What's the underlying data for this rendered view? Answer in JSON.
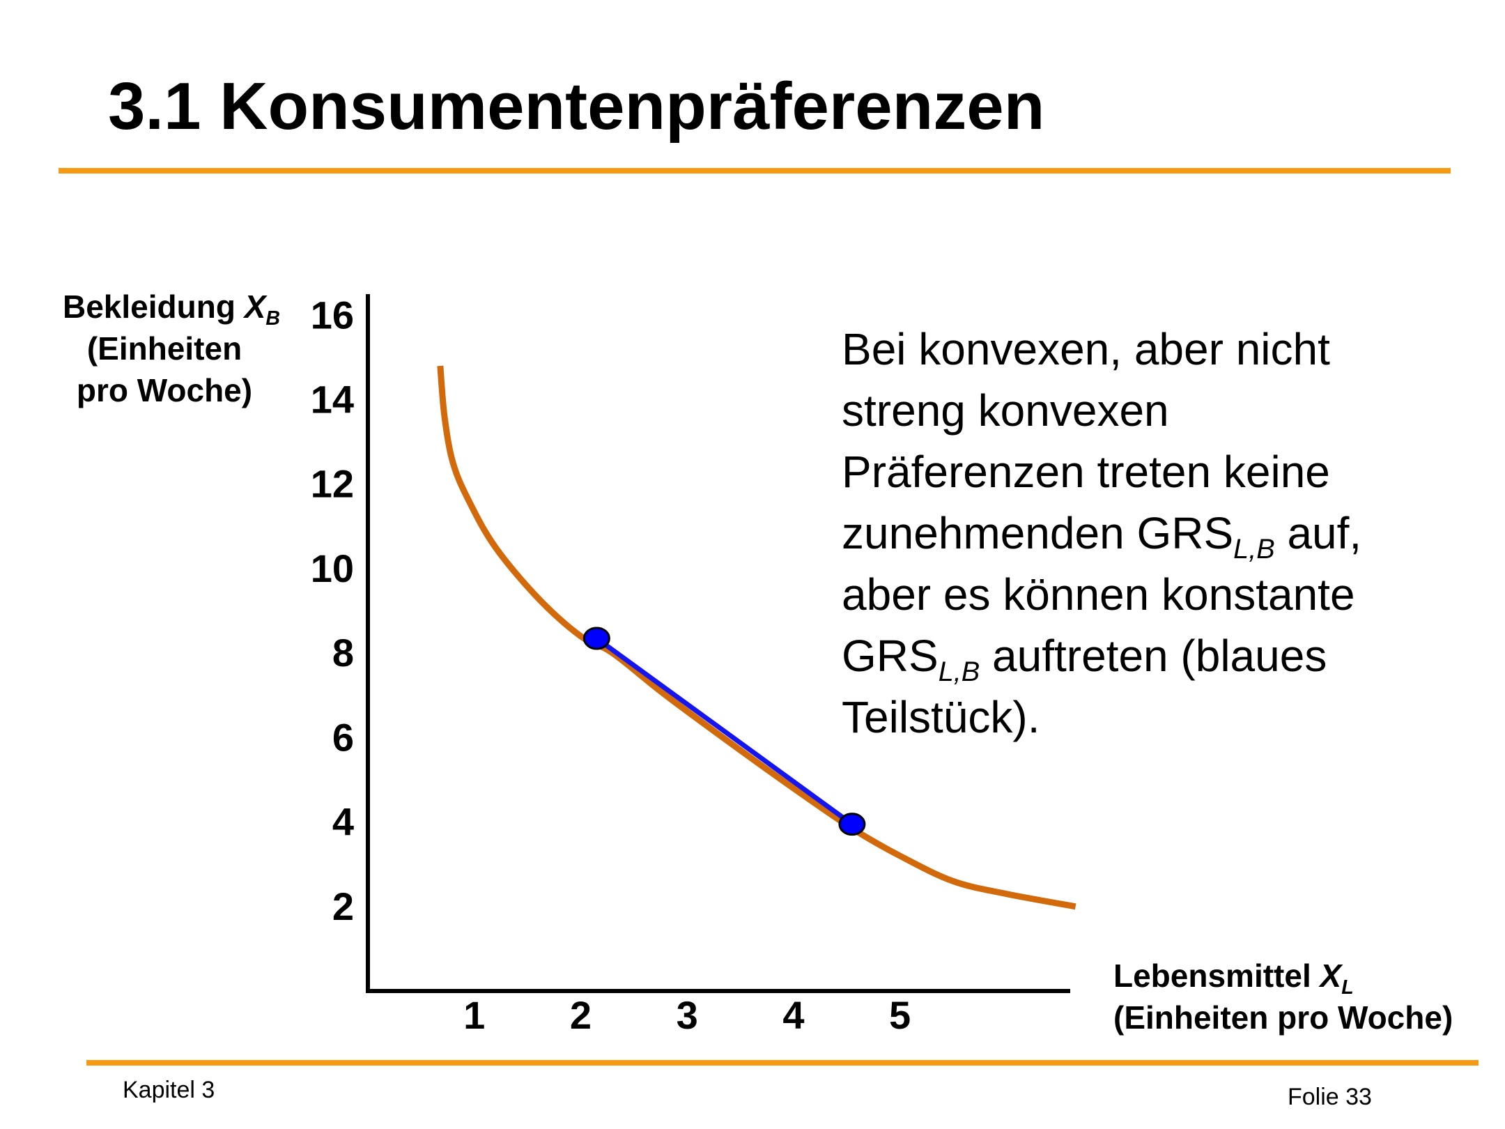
{
  "slide": {
    "title": "3.1 Konsumentenpräferenzen",
    "accent_color": "#f59a12",
    "footer_left": "Kapitel 3",
    "footer_right": "Folie 33"
  },
  "annotation": {
    "line1": "Bei konvexen, aber nicht",
    "line2": "streng konvexen",
    "line3": "Präferenzen treten keine",
    "line4_pre": "zunehmenden GRS",
    "line4_sub": "L,B",
    "line4_post": " auf,",
    "line5": "aber es können konstante",
    "line6_pre": "GRS",
    "line6_sub": "L,B",
    "line6_post": " auftreten (blaues",
    "line7": "Teilstück)."
  },
  "chart_data": {
    "type": "line",
    "ylabel_main": "Bekleidung ",
    "ylabel_symbol": "X",
    "ylabel_sub": "B",
    "ylabel_unit_1": "(Einheiten",
    "ylabel_unit_2": "pro Woche)",
    "xlabel_main": "Lebensmittel ",
    "xlabel_symbol": "X",
    "xlabel_sub": "L",
    "xlabel_unit": "(Einheiten pro Woche)",
    "xlim": [
      0,
      6.6
    ],
    "ylim": [
      0,
      16.5
    ],
    "xticks": [
      "1",
      "2",
      "3",
      "4",
      "5"
    ],
    "yticks": [
      "2",
      "4",
      "6",
      "8",
      "10",
      "12",
      "14",
      "16"
    ],
    "series": [
      {
        "color": "#d2690a",
        "x": [
          0.68,
          0.72,
          0.8,
          0.95,
          1.2,
          1.6,
          2.0,
          2.3,
          2.8,
          3.5,
          4.0,
          4.55,
          5.0,
          5.5,
          6.0,
          6.65
        ],
        "y": [
          14.8,
          13.6,
          12.5,
          11.6,
          10.5,
          9.3,
          8.4,
          8.0,
          7.0,
          5.7,
          4.8,
          3.85,
          3.2,
          2.6,
          2.3,
          2.0
        ]
      },
      {
        "color": "#1515f0",
        "x": [
          2.15,
          4.55
        ],
        "y": [
          8.35,
          3.95
        ]
      }
    ],
    "points": [
      {
        "x": 2.15,
        "y": 8.35,
        "color": "#0000ff"
      },
      {
        "x": 4.55,
        "y": 3.95,
        "color": "#0000ff"
      }
    ]
  }
}
